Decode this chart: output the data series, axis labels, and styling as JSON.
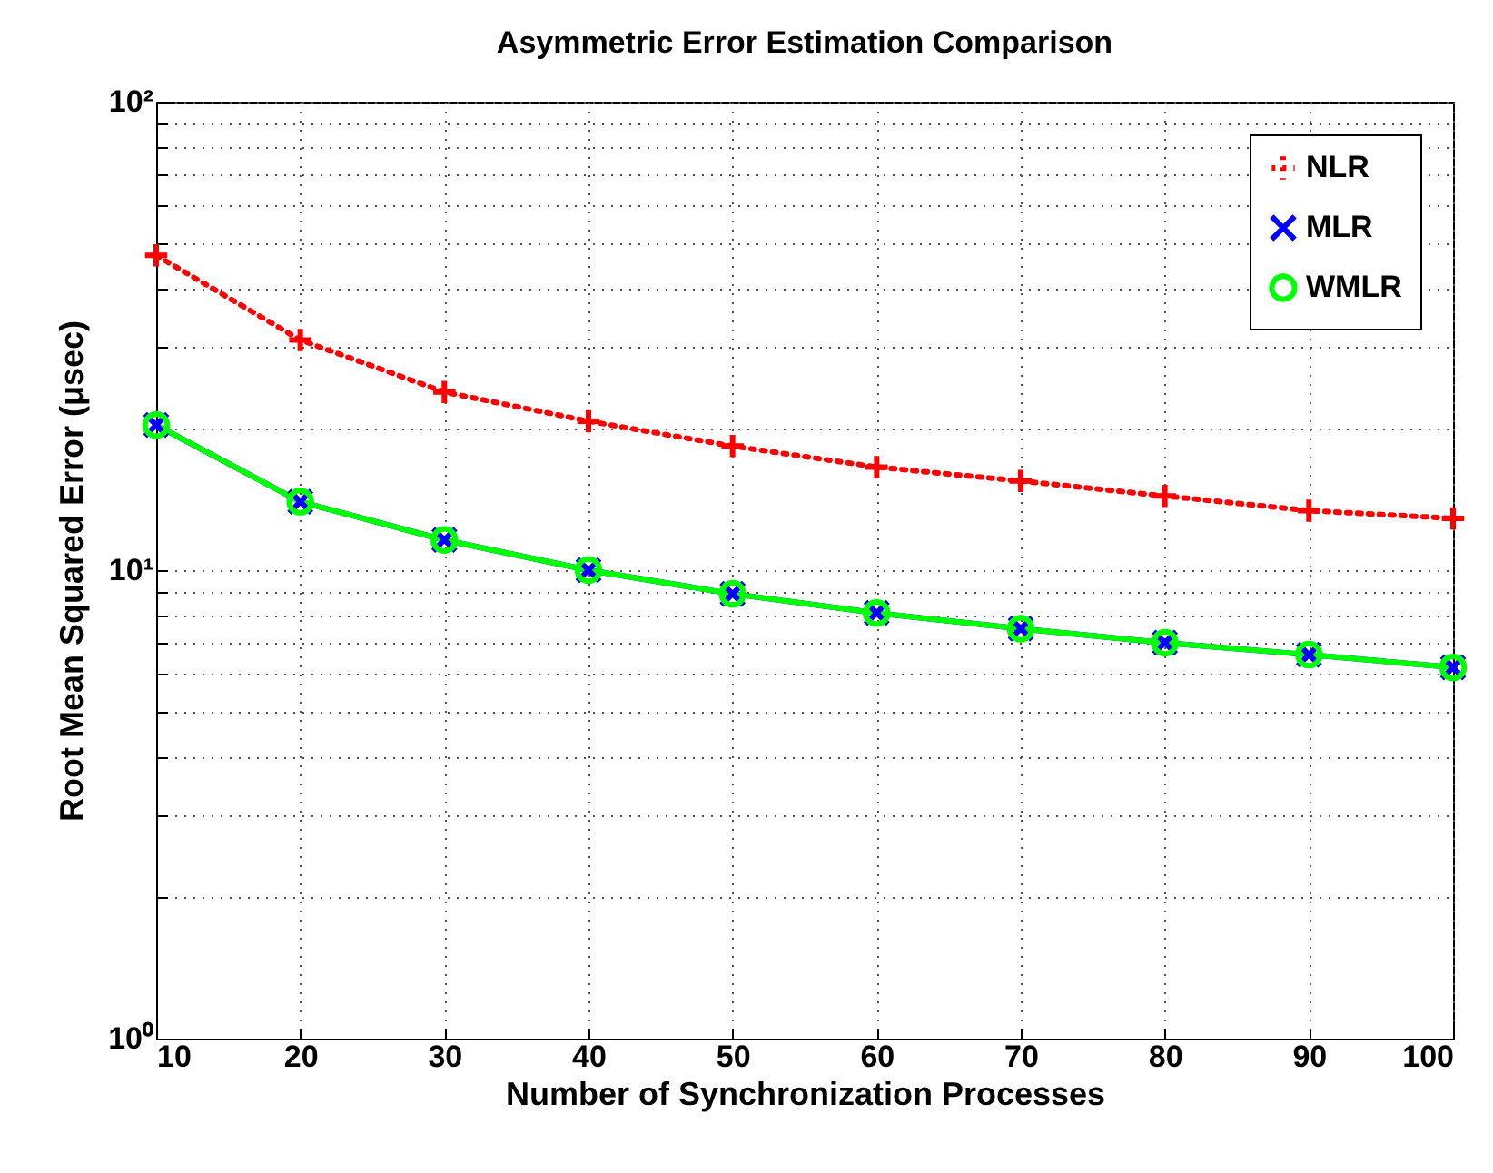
{
  "chart_data": {
    "type": "line",
    "title": "Asymmetric Error Estimation Comparison",
    "xlabel": "Number of Synchronization Processes",
    "ylabel": "Root Mean Squared Error (μsec)",
    "x": [
      10,
      20,
      30,
      40,
      50,
      60,
      70,
      80,
      90,
      100
    ],
    "series": [
      {
        "name": "NLR",
        "color": "#ff0000",
        "marker": "cross",
        "line_style": "dotted",
        "values": [
          47,
          31,
          24,
          20.8,
          18.4,
          16.6,
          15.5,
          14.4,
          13.4,
          12.9
        ]
      },
      {
        "name": "MLR",
        "color": "#0000ff",
        "marker": "x",
        "line_style": "solid",
        "values": [
          20.4,
          14.0,
          11.6,
          10.0,
          8.9,
          8.1,
          7.5,
          7.0,
          6.6,
          6.2
        ]
      },
      {
        "name": "WMLR",
        "color": "#00ff00",
        "marker": "circle",
        "line_style": "solid",
        "values": [
          20.4,
          14.0,
          11.6,
          10.0,
          8.9,
          8.1,
          7.5,
          7.0,
          6.6,
          6.2
        ]
      }
    ],
    "log": "y",
    "xlim": [
      10,
      100
    ],
    "xticks": [
      10,
      20,
      30,
      40,
      50,
      60,
      70,
      80,
      90,
      100
    ],
    "ylim": [
      1,
      100
    ],
    "yticks": [
      {
        "value": 1,
        "label": "10⁰"
      },
      {
        "value": 2,
        "label": null
      },
      {
        "value": 3,
        "label": null
      },
      {
        "value": 4,
        "label": null
      },
      {
        "value": 5,
        "label": null
      },
      {
        "value": 6,
        "label": null
      },
      {
        "value": 7,
        "label": null
      },
      {
        "value": 8,
        "label": null
      },
      {
        "value": 9,
        "label": null
      },
      {
        "value": 10,
        "label": "10¹"
      },
      {
        "value": 20,
        "label": null
      },
      {
        "value": 30,
        "label": null
      },
      {
        "value": 40,
        "label": null
      },
      {
        "value": 50,
        "label": null
      },
      {
        "value": 60,
        "label": null
      },
      {
        "value": 70,
        "label": null
      },
      {
        "value": 80,
        "label": null
      },
      {
        "value": 90,
        "label": null
      },
      {
        "value": 100,
        "label": "10²"
      }
    ],
    "grid": true,
    "legend": "top right"
  }
}
